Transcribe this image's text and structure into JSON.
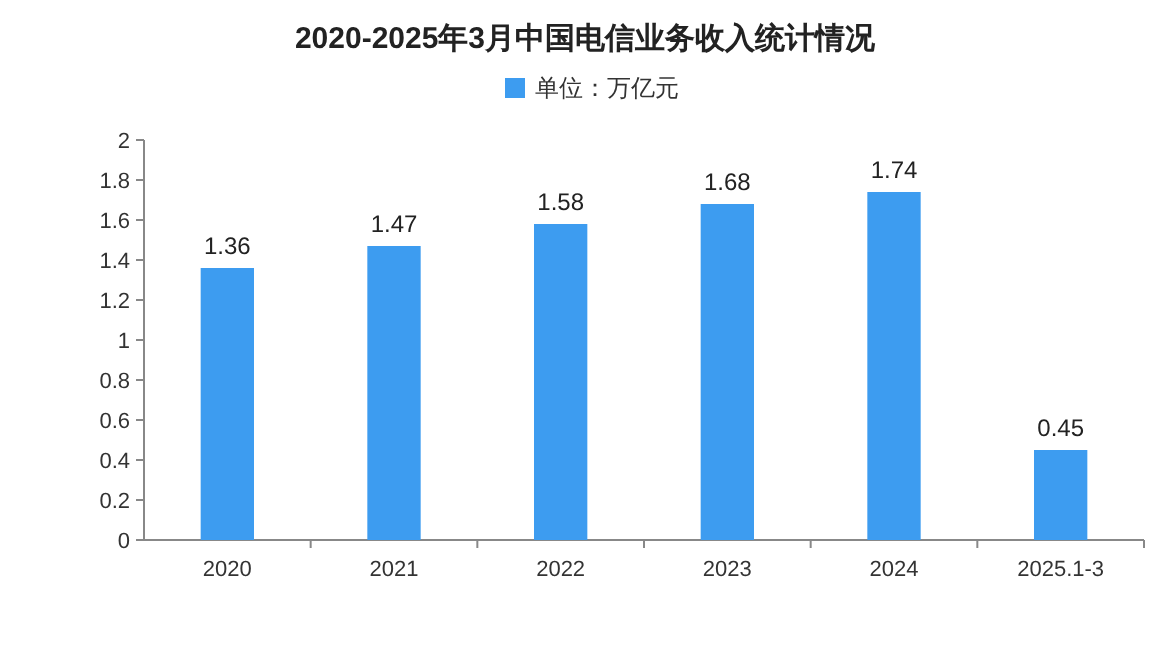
{
  "chart_data": {
    "type": "bar",
    "title": "2020-2025年3月中国电信业务收入统计情况",
    "categories": [
      "2020",
      "2021",
      "2022",
      "2023",
      "2024",
      "2025.1-3"
    ],
    "series": [
      {
        "name": "单位：万亿元",
        "color": "#3d9cf0",
        "values": [
          1.36,
          1.47,
          1.58,
          1.68,
          1.74,
          0.45
        ]
      }
    ],
    "ylim": [
      0,
      2
    ],
    "yticks": [
      0,
      0.2,
      0.4,
      0.6,
      0.8,
      1,
      1.2,
      1.4,
      1.6,
      1.8,
      2
    ],
    "data_labels": true,
    "legend": "top",
    "grid": false
  }
}
